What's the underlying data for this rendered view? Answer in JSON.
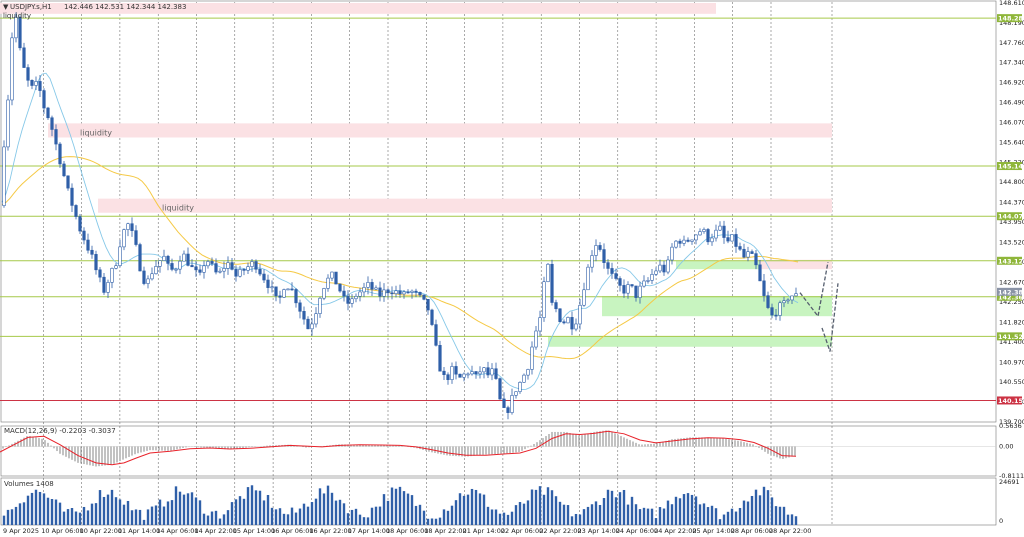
{
  "header": {
    "symbol_line": "USDJPY.s,H1",
    "ohlc": "142.446 142.531 142.344 142.383",
    "liquidity_label": "liquidity"
  },
  "colors": {
    "background": "#ffffff",
    "grid": "#555555",
    "bull": "#2f5fa8",
    "bear": "#2f5fa8",
    "ma_fast": "#86c8e8",
    "ma_slow": "#f5c945",
    "level_line": "#a6c94a",
    "support_line": "#cc3344",
    "supply_zone": "#fbe1e4",
    "demand_zone": "#c8f4c0",
    "macd_signal": "#e8222a",
    "histogram": "#9a9a9a",
    "volume": "#2f5fa8",
    "projection": "#555e6e"
  },
  "chart_data": {
    "type": "candlestick",
    "symbol": "USDJPY",
    "timeframe": "H1",
    "price_axis": {
      "ylim": [
        139.7,
        148.61
      ],
      "ticks": [
        "148.610",
        "148.190",
        "147.760",
        "147.340",
        "146.920",
        "146.490",
        "146.070",
        "145.640",
        "145.220",
        "144.800",
        "144.370",
        "143.950",
        "143.520",
        "143.100",
        "142.670",
        "142.250",
        "141.820",
        "141.400",
        "140.970",
        "140.550",
        "140.130",
        "139.700"
      ]
    },
    "time_axis": {
      "labels": [
        "9 Apr 2025",
        "10 Apr 06:00",
        "10 Apr 22:00",
        "11 Apr 14:00",
        "14 Apr 06:00",
        "14 Apr 22:00",
        "15 Apr 14:00",
        "16 Apr 06:00",
        "16 Apr 22:00",
        "17 Apr 14:00",
        "18 Apr 06:00",
        "18 Apr 22:00",
        "21 Apr 14:00",
        "22 Apr 06:00",
        "22 Apr 22:00",
        "23 Apr 14:00",
        "24 Apr 06:00",
        "24 Apr 22:00",
        "25 Apr 14:00",
        "28 Apr 06:00",
        "28 Apr 22:00"
      ]
    },
    "price_path": [
      [
        0,
        144.3
      ],
      [
        3,
        145.4
      ],
      [
        8,
        146.6
      ],
      [
        12,
        147.9
      ],
      [
        16,
        148.3
      ],
      [
        20,
        147.6
      ],
      [
        26,
        147.0
      ],
      [
        32,
        146.8
      ],
      [
        38,
        146.9
      ],
      [
        44,
        146.4
      ],
      [
        50,
        146.1
      ],
      [
        56,
        145.6
      ],
      [
        62,
        145.1
      ],
      [
        68,
        144.6
      ],
      [
        74,
        144.2
      ],
      [
        80,
        143.8
      ],
      [
        86,
        143.5
      ],
      [
        92,
        143.2
      ],
      [
        98,
        142.8
      ],
      [
        104,
        142.5
      ],
      [
        110,
        142.8
      ],
      [
        116,
        143.1
      ],
      [
        122,
        143.7
      ],
      [
        128,
        143.9
      ],
      [
        134,
        143.6
      ],
      [
        140,
        143.0
      ],
      [
        146,
        142.6
      ],
      [
        152,
        142.9
      ],
      [
        158,
        143.1
      ],
      [
        164,
        143.2
      ],
      [
        170,
        142.9
      ],
      [
        176,
        143.0
      ],
      [
        182,
        143.3
      ],
      [
        188,
        143.1
      ],
      [
        194,
        142.9
      ],
      [
        200,
        142.8
      ],
      [
        206,
        143.2
      ],
      [
        212,
        143.0
      ],
      [
        218,
        142.8
      ],
      [
        224,
        143.0
      ],
      [
        230,
        143.1
      ],
      [
        236,
        142.8
      ],
      [
        242,
        142.9
      ],
      [
        248,
        143.0
      ],
      [
        254,
        143.1
      ],
      [
        260,
        142.9
      ],
      [
        266,
        142.7
      ],
      [
        272,
        142.5
      ],
      [
        278,
        142.2
      ],
      [
        284,
        142.6
      ],
      [
        290,
        142.6
      ],
      [
        296,
        142.3
      ],
      [
        302,
        142.0
      ],
      [
        308,
        141.7
      ],
      [
        314,
        141.9
      ],
      [
        320,
        142.4
      ],
      [
        326,
        142.7
      ],
      [
        332,
        142.8
      ],
      [
        338,
        142.6
      ],
      [
        344,
        142.3
      ],
      [
        350,
        142.2
      ],
      [
        356,
        142.4
      ],
      [
        362,
        142.5
      ],
      [
        368,
        142.6
      ],
      [
        374,
        142.5
      ],
      [
        380,
        142.4
      ],
      [
        386,
        142.5
      ],
      [
        392,
        142.5
      ],
      [
        398,
        142.45
      ],
      [
        404,
        142.4
      ],
      [
        410,
        142.5
      ],
      [
        416,
        142.4
      ],
      [
        422,
        142.3
      ],
      [
        428,
        142.1
      ],
      [
        434,
        141.5
      ],
      [
        438,
        141.0
      ],
      [
        442,
        140.7
      ],
      [
        446,
        140.6
      ],
      [
        452,
        140.8
      ],
      [
        458,
        140.6
      ],
      [
        464,
        140.7
      ],
      [
        470,
        140.8
      ],
      [
        476,
        140.65
      ],
      [
        482,
        140.85
      ],
      [
        488,
        140.7
      ],
      [
        494,
        140.8
      ],
      [
        498,
        140.3
      ],
      [
        502,
        140.0
      ],
      [
        506,
        139.85
      ],
      [
        510,
        140.1
      ],
      [
        516,
        140.4
      ],
      [
        522,
        140.6
      ],
      [
        528,
        140.9
      ],
      [
        534,
        141.5
      ],
      [
        540,
        141.9
      ],
      [
        544,
        142.6
      ],
      [
        548,
        143.0
      ],
      [
        552,
        142.2
      ],
      [
        556,
        142.1
      ],
      [
        562,
        141.8
      ],
      [
        568,
        141.9
      ],
      [
        574,
        141.7
      ],
      [
        580,
        142.2
      ],
      [
        586,
        142.8
      ],
      [
        592,
        143.3
      ],
      [
        596,
        143.5
      ],
      [
        600,
        143.4
      ],
      [
        606,
        143.0
      ],
      [
        612,
        142.8
      ],
      [
        618,
        142.6
      ],
      [
        624,
        142.5
      ],
      [
        630,
        142.6
      ],
      [
        636,
        142.4
      ],
      [
        642,
        142.6
      ],
      [
        648,
        142.7
      ],
      [
        654,
        142.9
      ],
      [
        660,
        143.0
      ],
      [
        666,
        142.9
      ],
      [
        672,
        143.4
      ],
      [
        678,
        143.6
      ],
      [
        684,
        143.5
      ],
      [
        690,
        143.6
      ],
      [
        696,
        143.7
      ],
      [
        702,
        143.8
      ],
      [
        708,
        143.6
      ],
      [
        714,
        143.7
      ],
      [
        720,
        143.8
      ],
      [
        726,
        143.5
      ],
      [
        732,
        143.6
      ],
      [
        738,
        143.4
      ],
      [
        744,
        143.2
      ],
      [
        750,
        143.3
      ],
      [
        756,
        143.0
      ],
      [
        762,
        142.5
      ],
      [
        766,
        142.2
      ],
      [
        770,
        142.0
      ],
      [
        774,
        141.9
      ],
      [
        778,
        142.2
      ],
      [
        782,
        142.1
      ],
      [
        786,
        142.3
      ],
      [
        790,
        142.4
      ],
      [
        796,
        142.38
      ]
    ],
    "horizontal_levels": [
      {
        "price": 148.288,
        "label": "148.288"
      },
      {
        "price": 145.143,
        "label": "145.143"
      },
      {
        "price": 144.076,
        "label": "144.076"
      },
      {
        "price": 143.128,
        "label": "143.128"
      },
      {
        "price": 142.363,
        "label": "142.363"
      },
      {
        "price": 141.521,
        "label": "141.521"
      },
      {
        "price": 140.158,
        "label": "140.158"
      }
    ],
    "price_tags": [
      {
        "price": 142.383,
        "label": "142.383"
      },
      {
        "price": 142.363,
        "label": "142.363"
      }
    ],
    "zones": [
      {
        "kind": "supply",
        "from_x": 0,
        "to_x": 716,
        "y_low": 148.38,
        "y_high": 148.61,
        "text": ""
      },
      {
        "kind": "supply",
        "from_x": 48,
        "to_x": 832,
        "y_low": 145.75,
        "y_high": 146.05,
        "text": "liquidity",
        "text_x": 80
      },
      {
        "kind": "supply",
        "from_x": 98,
        "to_x": 832,
        "y_low": 144.15,
        "y_high": 144.45,
        "text": "liquidity",
        "text_x": 162
      },
      {
        "kind": "supply",
        "from_x": 757,
        "to_x": 832,
        "y_low": 142.95,
        "y_high": 143.15,
        "text": ""
      },
      {
        "kind": "demand",
        "from_x": 676,
        "to_x": 760,
        "y_low": 142.95,
        "y_high": 143.12,
        "text": ""
      },
      {
        "kind": "demand",
        "from_x": 602,
        "to_x": 832,
        "y_low": 141.95,
        "y_high": 142.38,
        "text": ""
      },
      {
        "kind": "demand",
        "from_x": 548,
        "to_x": 832,
        "y_low": 141.3,
        "y_high": 141.52,
        "text": ""
      }
    ],
    "projections": [
      [
        [
          800,
          142.45
        ],
        [
          818,
          141.95
        ],
        [
          828,
          143.1
        ]
      ],
      [
        [
          822,
          141.7
        ],
        [
          830,
          141.2
        ],
        [
          838,
          142.65
        ]
      ]
    ],
    "macd": {
      "label": "MACD(12,26,9) -0.2203 -0.3037",
      "ylim": [
        -0.8111,
        0.5636
      ],
      "ticks": [
        "0.5636",
        "0.00",
        "-0.8111"
      ],
      "histogram": [
        [
          0,
          -0.1
        ],
        [
          14,
          0.1
        ],
        [
          28,
          0.3
        ],
        [
          44,
          0.2
        ],
        [
          60,
          -0.2
        ],
        [
          78,
          -0.45
        ],
        [
          96,
          -0.55
        ],
        [
          112,
          -0.5
        ],
        [
          124,
          -0.35
        ],
        [
          136,
          -0.2
        ],
        [
          150,
          -0.1
        ],
        [
          170,
          -0.12
        ],
        [
          190,
          0.0
        ],
        [
          210,
          -0.05
        ],
        [
          230,
          -0.08
        ],
        [
          250,
          -0.02
        ],
        [
          270,
          0.03
        ],
        [
          290,
          0.05
        ],
        [
          306,
          -0.03
        ],
        [
          322,
          0.01
        ],
        [
          340,
          0.06
        ],
        [
          360,
          0.05
        ],
        [
          380,
          0.03
        ],
        [
          400,
          0.02
        ],
        [
          416,
          -0.04
        ],
        [
          430,
          -0.15
        ],
        [
          448,
          -0.25
        ],
        [
          466,
          -0.28
        ],
        [
          486,
          -0.22
        ],
        [
          502,
          -0.2
        ],
        [
          520,
          -0.15
        ],
        [
          536,
          0.1
        ],
        [
          552,
          0.4
        ],
        [
          566,
          0.4
        ],
        [
          580,
          0.3
        ],
        [
          594,
          0.4
        ],
        [
          608,
          0.45
        ],
        [
          624,
          0.25
        ],
        [
          640,
          0.05
        ],
        [
          656,
          0.08
        ],
        [
          672,
          0.2
        ],
        [
          690,
          0.25
        ],
        [
          708,
          0.25
        ],
        [
          724,
          0.22
        ],
        [
          740,
          0.15
        ],
        [
          754,
          0.05
        ],
        [
          768,
          -0.2
        ],
        [
          782,
          -0.35
        ],
        [
          796,
          -0.25
        ]
      ],
      "signal": [
        [
          0,
          -0.15
        ],
        [
          14,
          0.05
        ],
        [
          28,
          0.25
        ],
        [
          44,
          0.28
        ],
        [
          60,
          0.05
        ],
        [
          78,
          -0.25
        ],
        [
          96,
          -0.45
        ],
        [
          112,
          -0.5
        ],
        [
          124,
          -0.45
        ],
        [
          136,
          -0.32
        ],
        [
          150,
          -0.18
        ],
        [
          170,
          -0.13
        ],
        [
          190,
          -0.06
        ],
        [
          210,
          -0.04
        ],
        [
          230,
          -0.07
        ],
        [
          250,
          -0.05
        ],
        [
          270,
          -0.01
        ],
        [
          290,
          0.03
        ],
        [
          306,
          0.01
        ],
        [
          322,
          -0.01
        ],
        [
          340,
          0.03
        ],
        [
          360,
          0.05
        ],
        [
          380,
          0.04
        ],
        [
          400,
          0.03
        ],
        [
          416,
          -0.01
        ],
        [
          430,
          -0.08
        ],
        [
          448,
          -0.18
        ],
        [
          466,
          -0.24
        ],
        [
          486,
          -0.24
        ],
        [
          502,
          -0.21
        ],
        [
          520,
          -0.18
        ],
        [
          536,
          -0.05
        ],
        [
          552,
          0.22
        ],
        [
          566,
          0.35
        ],
        [
          580,
          0.33
        ],
        [
          594,
          0.36
        ],
        [
          608,
          0.42
        ],
        [
          624,
          0.35
        ],
        [
          640,
          0.18
        ],
        [
          656,
          0.1
        ],
        [
          672,
          0.15
        ],
        [
          690,
          0.21
        ],
        [
          708,
          0.24
        ],
        [
          724,
          0.23
        ],
        [
          740,
          0.19
        ],
        [
          754,
          0.11
        ],
        [
          768,
          -0.05
        ],
        [
          782,
          -0.25
        ],
        [
          796,
          -0.27
        ]
      ]
    },
    "volumes": {
      "label": "Volumes 1408",
      "ylim": [
        0,
        24691
      ],
      "ticks": [
        "24691",
        "0"
      ]
    }
  }
}
